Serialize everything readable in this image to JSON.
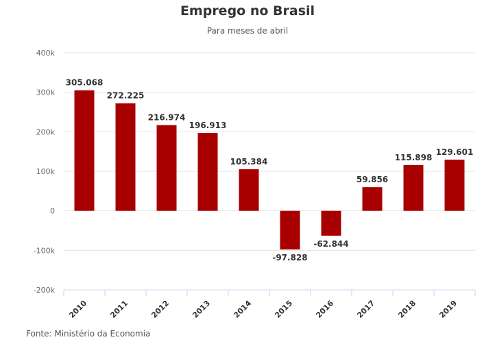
{
  "chart_data": {
    "type": "bar",
    "title": "Emprego no Brasil",
    "subtitle": "Para meses de abril",
    "categories": [
      "2010",
      "2011",
      "2012",
      "2013",
      "2014",
      "2015",
      "2016",
      "2017",
      "2018",
      "2019"
    ],
    "values": [
      305068,
      272225,
      216974,
      196913,
      105384,
      -97828,
      -62844,
      59856,
      115898,
      129601
    ],
    "data_labels": [
      "305.068",
      "272.225",
      "216.974",
      "196.913",
      "105.384",
      "-97.828",
      "-62.844",
      "59.856",
      "115.898",
      "129.601"
    ],
    "xlabel": "",
    "ylabel": "",
    "ylim": [
      -200000,
      400000
    ],
    "yticks": [
      400000,
      300000,
      200000,
      100000,
      0,
      -100000,
      -200000
    ],
    "ytick_labels": [
      "400k",
      "300k",
      "200k",
      "100k",
      "0",
      "-100k",
      "-200k"
    ],
    "grid": true,
    "legend": "none",
    "bar_color": "#a80000",
    "source": "Fonte: Ministério da Economia"
  }
}
